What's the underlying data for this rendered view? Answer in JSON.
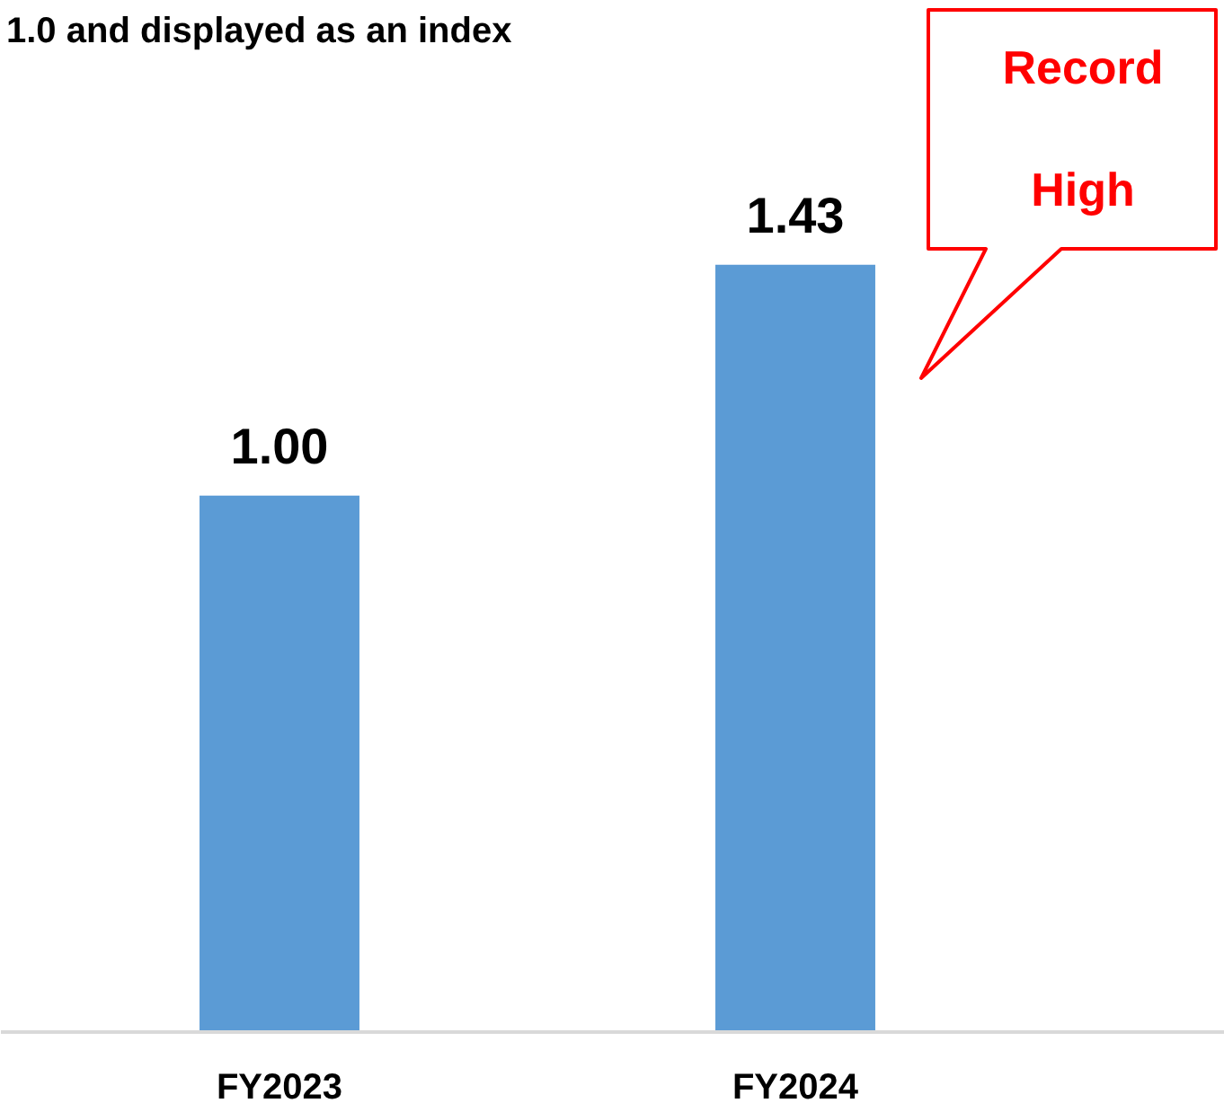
{
  "chart_data": {
    "type": "bar",
    "title": "1.0 and displayed as an index",
    "categories": [
      "FY2023",
      "FY2024"
    ],
    "values": [
      1.0,
      1.43
    ],
    "value_labels": [
      "1.00",
      "1.43"
    ],
    "color": "#5b9bd5",
    "annotations": [
      "Record High"
    ],
    "grid": false
  }
}
